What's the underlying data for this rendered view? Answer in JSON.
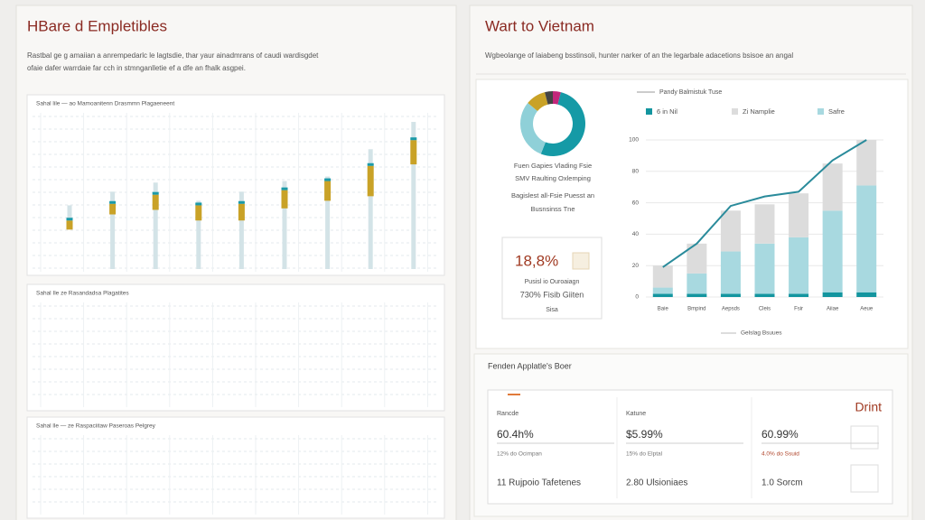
{
  "left": {
    "title": "HBare d Empletibles",
    "description": [
      "Rastbal ge g amaiian a anrempedarlc le lagtsdie, thar yaur ainadmrans of caudi wardisgdet",
      "ofaie dafer warrdaie far cch in stmnganlletie ef a dfe an fhalk asgpei."
    ],
    "charts": [
      {
        "type": "range",
        "label": "Sahal lile — ao Mamoanitenn Drasmmn Plagaeneent",
        "ylim": [
          0,
          100
        ],
        "high": [
          42,
          51,
          57,
          45,
          51,
          58,
          61,
          79,
          97
        ],
        "low": [
          29,
          0,
          0,
          0,
          0,
          0,
          0,
          0,
          0
        ],
        "box_top": [
          32,
          43,
          49,
          42,
          43,
          52,
          58,
          68,
          85
        ],
        "box_bottom": [
          26,
          36,
          39,
          32,
          32,
          40,
          45,
          48,
          69
        ],
        "stem_color": "#d3e3e7",
        "box_color": "#c9a227",
        "cap_color": "#1b9aa8"
      },
      {
        "type": "grid",
        "label": "Sahal Ile ze Rasandadsa Plagatites"
      },
      {
        "type": "grid",
        "label": "Sahal lle — ze Raspaciitaw Paseroas Pelgrey"
      }
    ]
  },
  "right": {
    "title": "Wart to Vietnam",
    "subtitle": "Wgbeolange of laiabeng bsstinsoli, hunter narker of an the legarbale adacetions bsisoe an angal",
    "donut": {
      "values": [
        4,
        52,
        30,
        10,
        4
      ],
      "colors": [
        "#c2267a",
        "#159aa6",
        "#8fd0d8",
        "#c9a227",
        "#444444"
      ]
    },
    "donut_caption": [
      "Fuen Gapies Vlading Fsie",
      "SMV Raulting Oxlemping",
      "Bagislest all-Fsie Puesst an",
      "Busnsinss Tne"
    ],
    "card": {
      "value": "18,8%",
      "lines": [
        "Pusisl io Ouroaiagn",
        "730% Fisib Giiten",
        "Sisa"
      ]
    },
    "combo": {
      "type": "stacked-bar-line",
      "categories": [
        "Baie",
        "Bmpind",
        "Aepsds",
        "Cleis",
        "Fsir",
        "Aiiae",
        "Aeue"
      ],
      "series": [
        {
          "name": "6 in Nil",
          "color": "#13959f",
          "values": [
            2,
            2,
            2,
            2,
            2,
            3,
            3
          ]
        },
        {
          "name": "Zi Namplie",
          "color": "#dcdcdc",
          "values": [
            14,
            19,
            26,
            25,
            28,
            30,
            29
          ]
        },
        {
          "name": "Safre",
          "color": "#a8d9e0",
          "values": [
            4,
            13,
            27,
            32,
            36,
            52,
            68
          ]
        },
        {
          "name": "Pandy Balmistuk Tuse",
          "color": "#2a8b9b",
          "kind": "line",
          "values": [
            19,
            34,
            58,
            64,
            67,
            87,
            100
          ]
        }
      ],
      "stack_order": [
        0,
        2,
        1
      ],
      "ylim": [
        0,
        100
      ],
      "yticks": [
        0,
        20,
        40,
        60,
        80,
        100
      ],
      "xlabel": "Gelslag Bsuues",
      "grid": true
    },
    "panel": {
      "title": "Fenden Applatle's Boer",
      "action": "Drint",
      "columns": [
        {
          "head": "Rancde",
          "value": "60.4h%",
          "note": "12% do Ocimpan",
          "footer": "11 Rujpoio Tafetenes"
        },
        {
          "head": "Katune",
          "value": "$5.99%",
          "note": "15% do Elptal",
          "footer": "2.80 Ulsioniaes"
        },
        {
          "value": "60.99%",
          "note": "4.0% do Ssuid",
          "footer": "1.0 Sorcm"
        }
      ]
    }
  }
}
